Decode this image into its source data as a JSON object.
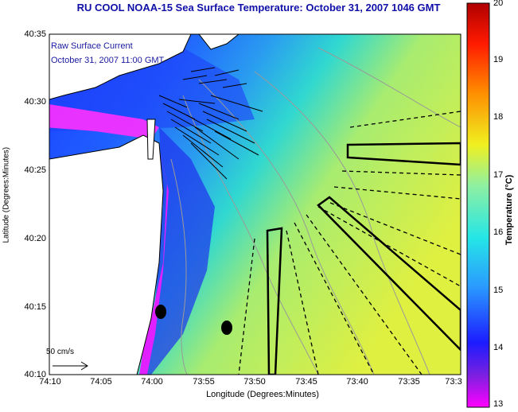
{
  "title": "RU COOL  NOAA-15  Sea Surface Temperature:  October 31, 2007 1046 GMT",
  "legend": {
    "line1": "Raw Surface Current",
    "line2": "October 31, 2007 11:00 GMT"
  },
  "scale_label": "50 cm/s",
  "axes": {
    "x_title": "Longitude (Degrees:Minutes)",
    "y_title": "Latitude (Degrees:Minutes)",
    "x_ticks": [
      "74:10",
      "74:05",
      "74:00",
      "73:55",
      "73:50",
      "73:45",
      "73:40",
      "73:35",
      "73:3"
    ],
    "y_ticks": [
      "40:35",
      "40:30",
      "40:25",
      "40:20",
      "40:15",
      "40:10"
    ]
  },
  "colorbar": {
    "title": "Temperature (°C)",
    "ticks": [
      "20",
      "19",
      "18",
      "17",
      "16",
      "15",
      "14",
      "13"
    ],
    "range": [
      13,
      20
    ],
    "colors": [
      "#ff00ff",
      "#1c1cff",
      "#2a9cff",
      "#25e6e6",
      "#90f0a0",
      "#f0f020",
      "#ff8c00",
      "#ff1a00",
      "#b00000"
    ]
  }
}
